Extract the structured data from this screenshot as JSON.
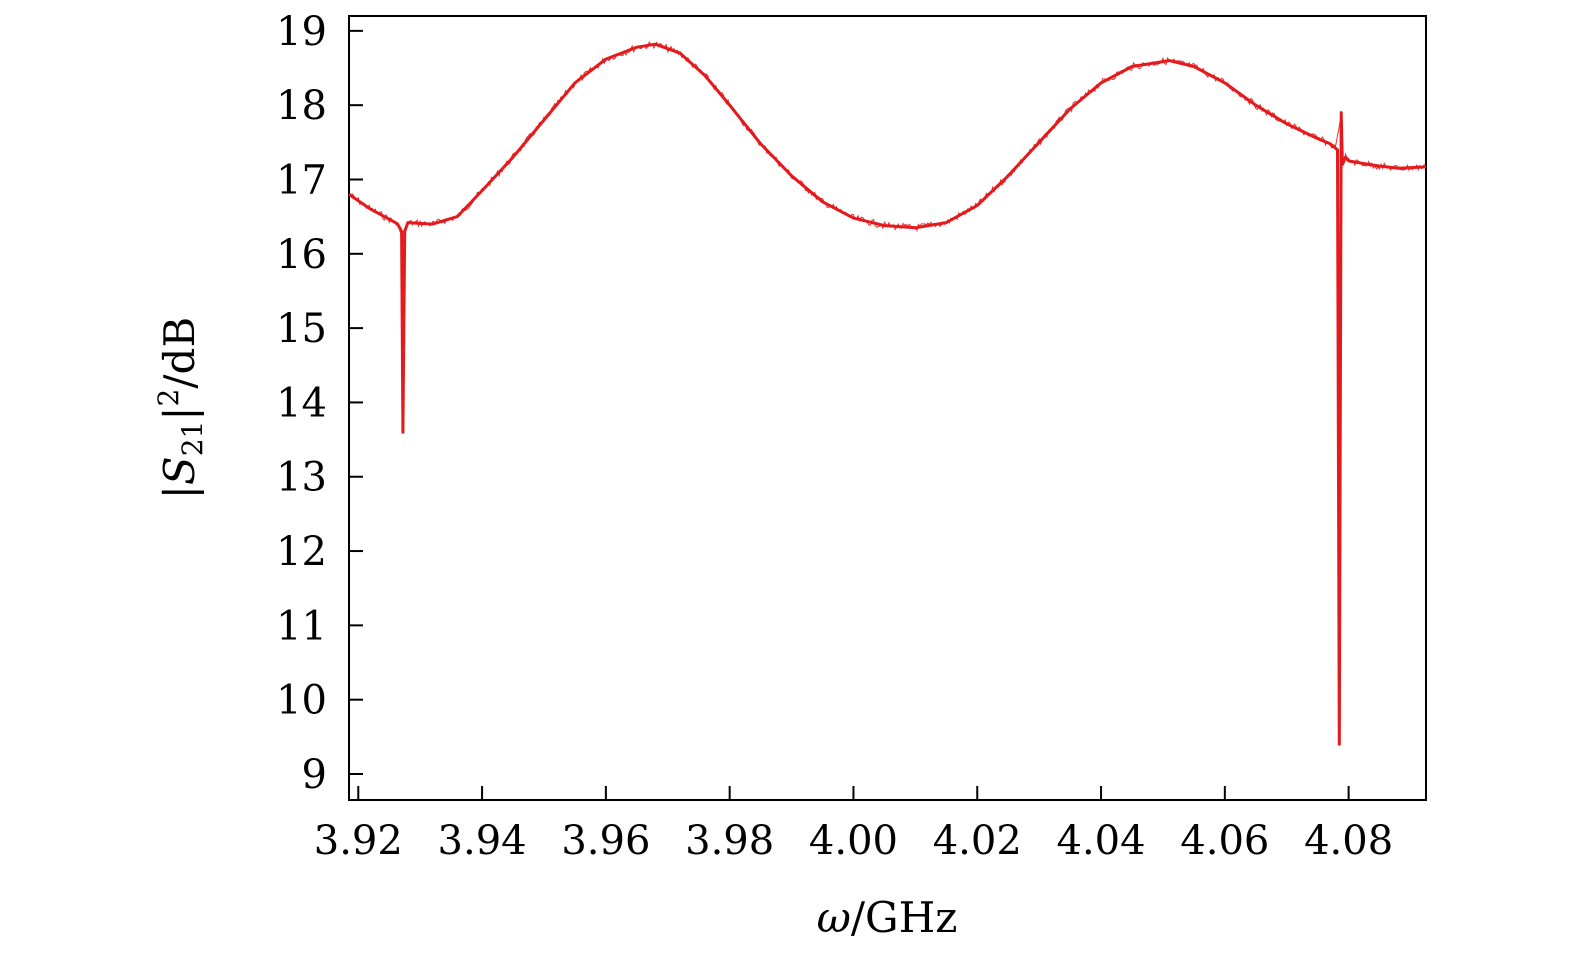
{
  "chart_data": {
    "type": "line",
    "xlabel": {
      "symbol": "ω",
      "unit": "/GHz"
    },
    "ylabel": {
      "pre": "|",
      "symbol": "S",
      "subscript": "21",
      "post": "|",
      "superscript": "2",
      "unit": "/dB"
    },
    "xlim": [
      3.9185,
      4.0925
    ],
    "ylim": [
      8.65,
      19.2
    ],
    "xticks": [
      3.92,
      3.94,
      3.96,
      3.98,
      4.0,
      4.02,
      4.04,
      4.06,
      4.08
    ],
    "xtick_labels": [
      "3.92",
      "3.94",
      "3.96",
      "3.98",
      "4.00",
      "4.02",
      "4.04",
      "4.06",
      "4.08"
    ],
    "yticks": [
      9,
      10,
      11,
      12,
      13,
      14,
      15,
      16,
      17,
      18,
      19
    ],
    "ytick_labels": [
      "9",
      "10",
      "11",
      "12",
      "13",
      "14",
      "15",
      "16",
      "17",
      "18",
      "19"
    ],
    "grid": false,
    "series": [
      {
        "color": "#e41a1c",
        "x": [
          3.9185,
          3.922,
          3.926,
          3.9265,
          3.927,
          3.9272,
          3.9275,
          3.928,
          3.932,
          3.936,
          3.94,
          3.945,
          3.95,
          3.955,
          3.96,
          3.965,
          3.968,
          3.972,
          3.976,
          3.98,
          3.985,
          3.99,
          3.995,
          4.0,
          4.005,
          4.01,
          4.015,
          4.02,
          4.025,
          4.03,
          4.035,
          4.04,
          4.045,
          4.051,
          4.055,
          4.06,
          4.065,
          4.07,
          4.075,
          4.077,
          4.0782,
          4.0785,
          4.0788,
          4.079,
          4.0795,
          4.08,
          4.082,
          4.085,
          4.088,
          4.0925
        ],
        "y": [
          16.8,
          16.6,
          16.42,
          16.38,
          16.3,
          13.6,
          16.3,
          16.42,
          16.4,
          16.5,
          16.85,
          17.3,
          17.8,
          18.3,
          18.62,
          18.78,
          18.82,
          18.7,
          18.4,
          18.0,
          17.48,
          17.05,
          16.7,
          16.48,
          16.38,
          16.35,
          16.42,
          16.65,
          17.05,
          17.5,
          17.95,
          18.3,
          18.52,
          18.6,
          18.52,
          18.3,
          18.0,
          17.75,
          17.55,
          17.48,
          17.4,
          9.4,
          17.9,
          17.2,
          17.3,
          17.25,
          17.22,
          17.18,
          17.15,
          17.17
        ]
      }
    ]
  }
}
